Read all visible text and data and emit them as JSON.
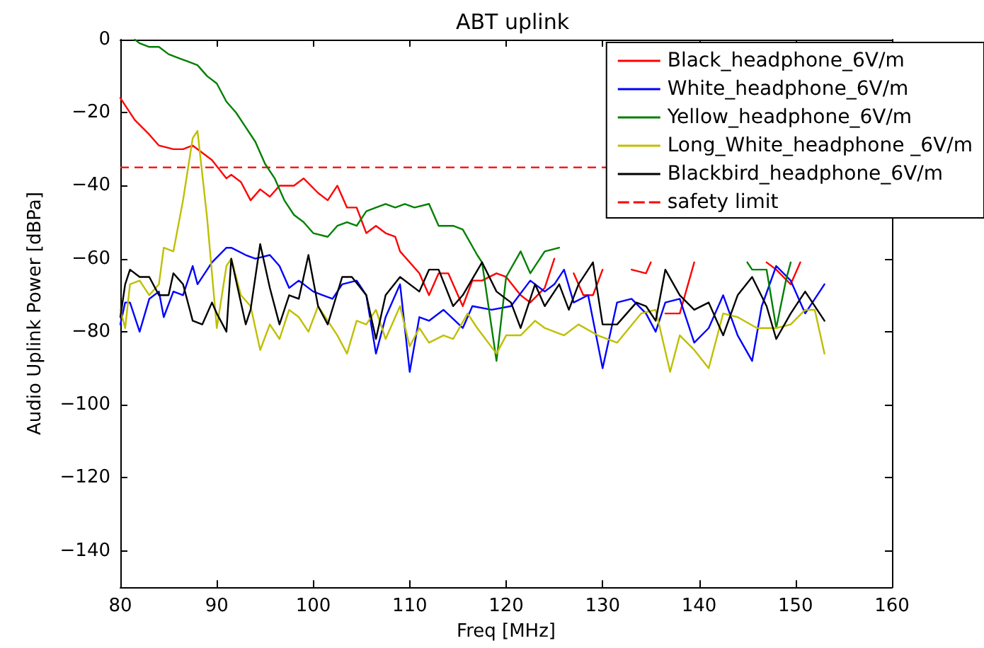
{
  "chart_data": {
    "type": "line",
    "title": "ABT uplink",
    "xlabel": "Freq [MHz]",
    "ylabel": "Audio Uplink Power [dBPa]",
    "xlim": [
      80,
      160
    ],
    "xticks": [
      80,
      90,
      100,
      110,
      120,
      130,
      140,
      150,
      160
    ],
    "ylim": [
      -150,
      0
    ],
    "yticks": [
      -140,
      -120,
      -100,
      -80,
      -60,
      -40,
      -20,
      0
    ],
    "grid": false,
    "legend": "top right",
    "marker": "none",
    "line_style": "solid",
    "series": [
      {
        "name": "Black_headphone_6V/m",
        "color": "#ff0000",
        "x": [
          80,
          81.5,
          83,
          84,
          85.5,
          86.5,
          87.5,
          88.5,
          89.5,
          91,
          91.5,
          92.5,
          93.5,
          94.5,
          95.5,
          96.5,
          98,
          99,
          100.5,
          101.5,
          102.5,
          103.5,
          104.5,
          105.5,
          106.5,
          107.5,
          108.5,
          109,
          111,
          112,
          113,
          114,
          115.5,
          116.5,
          117.5,
          119,
          120,
          121.5,
          122.5,
          124,
          125,
          126,
          127,
          128,
          129,
          130,
          131,
          132.5,
          133,
          134.5,
          135,
          136,
          136.5,
          138,
          139.5,
          140,
          147,
          148,
          149.5,
          150.5
        ],
        "values": [
          -16,
          -22,
          -26,
          -29,
          -30,
          -30,
          -29,
          -31,
          -33,
          -38,
          -37,
          -39,
          -44,
          -41,
          -43,
          -40,
          -40,
          -38,
          -42,
          -44,
          -40,
          -46,
          -46,
          -53,
          -51,
          -53,
          -54,
          -58,
          -64,
          -70,
          -64,
          -64,
          -73,
          -66,
          -66,
          -64,
          -65,
          -70,
          -72,
          -68,
          -60,
          null,
          -64,
          -70,
          -70,
          -63,
          null,
          null,
          -63,
          -64,
          -61,
          null,
          -75,
          -75,
          -61,
          null,
          -61,
          -63,
          -67,
          -61
        ]
      },
      {
        "name": "White_headphone_6V/m",
        "color": "#0000ff",
        "x": [
          80,
          80.5,
          81,
          82,
          83,
          84,
          84.5,
          85.5,
          86.5,
          87.5,
          88,
          89.5,
          91,
          91.5,
          93,
          94,
          95.5,
          96.5,
          97.5,
          98.5,
          100,
          101,
          102,
          103,
          104.5,
          105.5,
          106.5,
          107.5,
          109,
          110,
          111,
          112,
          113.5,
          115.5,
          116.5,
          118.5,
          120.5,
          122.5,
          124,
          125,
          126,
          127,
          128.5,
          130,
          131.5,
          133,
          134.5,
          135.5,
          136.5,
          138,
          139.5,
          141,
          142.5,
          144,
          145.5,
          146.5,
          148,
          149.5,
          151,
          153
        ],
        "values": [
          -78,
          -72,
          -72,
          -80,
          -71,
          -69,
          -76,
          -69,
          -70,
          -62,
          -67,
          -61,
          -57,
          -57,
          -59,
          -60,
          -59,
          -62,
          -68,
          -66,
          -69,
          -70,
          -71,
          -67,
          -66,
          -70,
          -86,
          -76,
          -67,
          -91,
          -76,
          -77,
          -74,
          -79,
          -73,
          -74,
          -73,
          -66,
          -69,
          -67,
          -63,
          -72,
          -70,
          -90,
          -72,
          -71,
          -75,
          -80,
          -72,
          -71,
          -83,
          -79,
          -70,
          -81,
          -88,
          -73,
          -62,
          -66,
          -75,
          -67
        ]
      },
      {
        "name": "Yellow_headphone_6V/m",
        "color": "#008000",
        "x": [
          81.5,
          82,
          83,
          84,
          85,
          86,
          87,
          88,
          89,
          90,
          91,
          92,
          93,
          94,
          95,
          96,
          97,
          98,
          99,
          100,
          101.5,
          102.5,
          103.5,
          104.5,
          105.5,
          106.5,
          107.5,
          108.5,
          109.5,
          110.5,
          112,
          113,
          114.5,
          115.5,
          117,
          117.5,
          119,
          120,
          121.5,
          122.5,
          124,
          125.5,
          126,
          145,
          145.5,
          147,
          148,
          149,
          149.5
        ],
        "values": [
          0,
          -1,
          -2,
          -2,
          -4,
          -5,
          -6,
          -7,
          -10,
          -12,
          -17,
          -20,
          -24,
          -28,
          -34,
          -38,
          -44,
          -48,
          -50,
          -53,
          -54,
          -51,
          -50,
          -51,
          -47,
          -46,
          -45,
          -46,
          -45,
          -46,
          -45,
          -51,
          -51,
          -52,
          -59,
          -61,
          -88,
          -65,
          -58,
          -64,
          -58,
          -57,
          null,
          -61,
          -63,
          -63,
          -79,
          -66,
          -61
        ]
      },
      {
        "name": "Long_White_headphone _6V/m",
        "color": "#bfbf00",
        "x": [
          80,
          80.5,
          81,
          82,
          83,
          84,
          84.5,
          85.5,
          86.5,
          87.5,
          88,
          89,
          90,
          91,
          91.5,
          92.5,
          93.5,
          94.5,
          95.5,
          96.5,
          97.5,
          98.5,
          99.5,
          100.5,
          101.5,
          102.5,
          103.5,
          104.5,
          105.5,
          106.5,
          107.5,
          109,
          110,
          111,
          112,
          113.5,
          114.5,
          116,
          117,
          119,
          120,
          121.5,
          123,
          124,
          126,
          127.5,
          129.5,
          131.5,
          134,
          135.5,
          137,
          138,
          139.5,
          141,
          142.5,
          144,
          146,
          148,
          149.5,
          151,
          152,
          153
        ],
        "values": [
          -74,
          -79,
          -67,
          -66,
          -70,
          -67,
          -57,
          -58,
          -44,
          -27,
          -25,
          -49,
          -79,
          -62,
          -60,
          -70,
          -73,
          -85,
          -78,
          -82,
          -74,
          -76,
          -80,
          -73,
          -77,
          -81,
          -86,
          -77,
          -78,
          -74,
          -82,
          -73,
          -84,
          -79,
          -83,
          -81,
          -82,
          -75,
          -79,
          -86,
          -81,
          -81,
          -77,
          -79,
          -81,
          -78,
          -81,
          -83,
          -75,
          -74,
          -91,
          -81,
          -85,
          -90,
          -75,
          -76,
          -79,
          -79,
          -78,
          -74,
          -74,
          -86
        ]
      },
      {
        "name": "Blackbird_headphone_6V/m",
        "color": "#000000",
        "x": [
          80,
          80.5,
          81,
          82,
          83,
          84,
          85,
          85.5,
          86.5,
          87.5,
          88.5,
          89.5,
          90,
          91,
          91.5,
          93,
          93.5,
          94.5,
          95.5,
          96.5,
          97.5,
          98.5,
          99.5,
          100.5,
          101.5,
          103,
          104,
          105.5,
          106.5,
          107.5,
          109,
          111,
          112,
          113,
          114.5,
          115.5,
          117.5,
          119,
          120.5,
          121.5,
          123,
          124,
          125.5,
          126.5,
          127.5,
          129,
          130,
          131.5,
          133.5,
          134.5,
          135.5,
          136.5,
          138,
          139.5,
          141,
          142.5,
          144,
          145.5,
          147,
          148,
          149.5,
          151,
          153
        ],
        "values": [
          -76,
          -67,
          -63,
          -65,
          -65,
          -70,
          -70,
          -64,
          -67,
          -77,
          -78,
          -72,
          -75,
          -80,
          -60,
          -78,
          -74,
          -56,
          -68,
          -78,
          -70,
          -71,
          -59,
          -73,
          -78,
          -65,
          -65,
          -70,
          -82,
          -70,
          -65,
          -69,
          -63,
          -63,
          -73,
          -70,
          -61,
          -69,
          -72,
          -79,
          -67,
          -73,
          -67,
          -74,
          -67,
          -61,
          -78,
          -78,
          -72,
          -73,
          -77,
          -63,
          -70,
          -74,
          -72,
          -81,
          -70,
          -65,
          -73,
          -82,
          -75,
          -69,
          -77
        ]
      }
    ],
    "ref_lines": [
      {
        "axis": "y",
        "value": -35,
        "label": "safety limit",
        "color": "#ff0000",
        "line_style": "dashed"
      }
    ]
  }
}
